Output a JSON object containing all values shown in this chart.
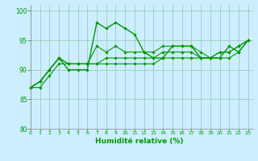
{
  "xlabel": "Humidité relative (%)",
  "background_color": "#cceeff",
  "grid_color": "#99ccbb",
  "line_color": "#009900",
  "xlim": [
    -0.5,
    23.5
  ],
  "ylim": [
    80,
    101
  ],
  "yticks": [
    80,
    85,
    90,
    95,
    100
  ],
  "xticks": [
    0,
    1,
    2,
    3,
    4,
    5,
    6,
    7,
    8,
    9,
    10,
    11,
    12,
    13,
    14,
    15,
    16,
    17,
    18,
    19,
    20,
    21,
    22,
    23
  ],
  "series": [
    [
      87,
      88,
      90,
      92,
      90,
      90,
      90,
      98,
      97,
      98,
      97,
      96,
      93,
      92,
      92,
      94,
      94,
      94,
      92,
      92,
      92,
      94,
      93,
      95
    ],
    [
      87,
      88,
      90,
      92,
      91,
      91,
      91,
      94,
      93,
      94,
      93,
      93,
      93,
      93,
      94,
      94,
      94,
      94,
      93,
      92,
      93,
      93,
      94,
      95
    ],
    [
      87,
      88,
      90,
      92,
      91,
      91,
      91,
      91,
      92,
      92,
      92,
      92,
      92,
      92,
      93,
      93,
      93,
      93,
      92,
      92,
      93,
      93,
      94,
      95
    ],
    [
      87,
      87,
      89,
      91,
      91,
      91,
      91,
      91,
      91,
      91,
      91,
      91,
      91,
      91,
      92,
      92,
      92,
      92,
      92,
      92,
      92,
      92,
      93,
      95
    ]
  ]
}
